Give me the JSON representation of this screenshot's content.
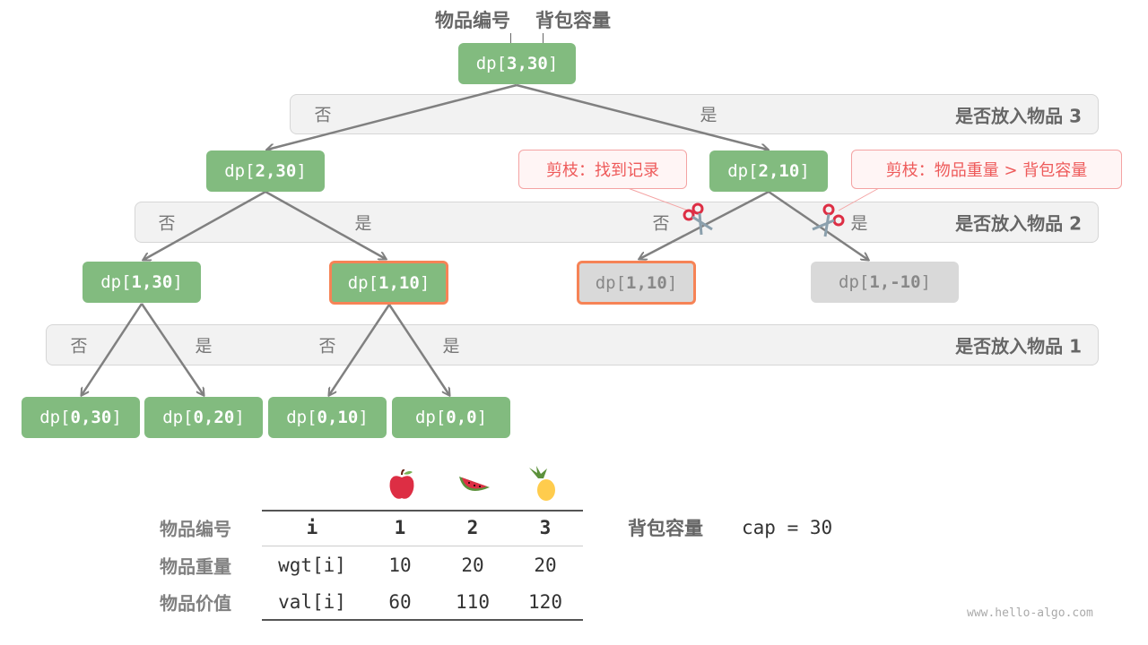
{
  "header": {
    "item_label": "物品编号",
    "capacity_label": "背包容量"
  },
  "bands": [
    {
      "label": "是否放入物品 3"
    },
    {
      "label": "是否放入物品 2"
    },
    {
      "label": "是否放入物品 1"
    }
  ],
  "branch": {
    "no": "否",
    "yes": "是"
  },
  "node_prefix": "dp[",
  "node_suffix": "]",
  "nodes": [
    {
      "args": "3,30",
      "state": "normal"
    },
    {
      "args": "2,30",
      "state": "normal"
    },
    {
      "args": "2,10",
      "state": "normal"
    },
    {
      "args": "1,30",
      "state": "normal"
    },
    {
      "args": "1,10",
      "state": "highlight"
    },
    {
      "args": "1,10",
      "state": "pruned-highlight"
    },
    {
      "args": "1,-10",
      "state": "pruned"
    },
    {
      "args": "0,30",
      "state": "normal"
    },
    {
      "args": "0,20",
      "state": "normal"
    },
    {
      "args": "0,10",
      "state": "normal"
    },
    {
      "args": "0,0",
      "state": "normal"
    }
  ],
  "callouts": [
    {
      "text": "剪枝：找到记录",
      "icon": "scissors-icon"
    },
    {
      "text": "剪枝：物品重量 > 背包容量",
      "icon": "scissors-icon"
    }
  ],
  "table": {
    "rows": [
      {
        "label": "物品编号",
        "cells": [
          "i",
          "1",
          "2",
          "3"
        ]
      },
      {
        "label": "物品重量",
        "cells": [
          "wgt[i]",
          "10",
          "20",
          "20"
        ]
      },
      {
        "label": "物品价值",
        "cells": [
          "val[i]",
          "60",
          "110",
          "120"
        ]
      }
    ],
    "icons": [
      "apple-icon",
      "watermelon-icon",
      "pineapple-icon"
    ],
    "capacity_label": "背包容量",
    "capacity_value": "cap = 30"
  },
  "watermark": "www.hello-algo.com",
  "colors": {
    "node": "#82bb7f",
    "pruned": "#d9d9d9",
    "highlight_border": "#f68356",
    "callout_text": "#ee5a5a"
  }
}
